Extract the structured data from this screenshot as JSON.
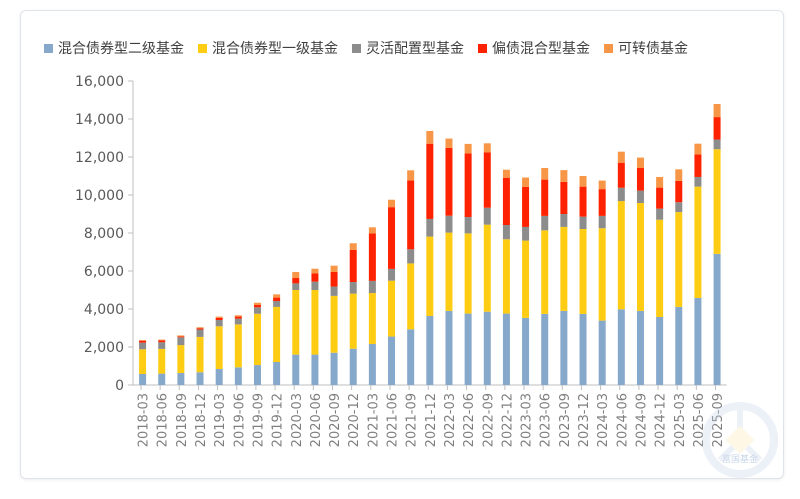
{
  "chart_data": {
    "type": "bar",
    "stacked": true,
    "title": "",
    "xlabel": "",
    "ylabel": "",
    "ylim": [
      0,
      16000
    ],
    "yticks": [
      "0",
      "2,000",
      "4,000",
      "6,000",
      "8,000",
      "10,000",
      "12,000",
      "14,000",
      "16,000"
    ],
    "grid": false,
    "legend_position": "top",
    "categories": [
      "2018-03",
      "2018-06",
      "2018-09",
      "2018-12",
      "2019-03",
      "2019-06",
      "2019-09",
      "2019-12",
      "2020-03",
      "2020-06",
      "2020-09",
      "2020-12",
      "2021-03",
      "2021-06",
      "2021-09",
      "2021-12",
      "2022-03",
      "2022-06",
      "2022-09",
      "2022-12",
      "2023-03",
      "2023-06",
      "2023-09",
      "2023-12",
      "2024-03",
      "2024-06",
      "2024-09",
      "2024-12",
      "2025-03",
      "2025-06",
      "2025-09"
    ],
    "series": [
      {
        "name": "混合债券型二级基金",
        "color": "#86a8cb",
        "values": [
          580,
          600,
          630,
          670,
          840,
          930,
          1050,
          1210,
          1600,
          1600,
          1700,
          1910,
          2160,
          2550,
          2930,
          3630,
          3900,
          3760,
          3860,
          3760,
          3530,
          3740,
          3900,
          3740,
          3390,
          3980,
          3900,
          3580,
          4110,
          4580,
          6900
        ]
      },
      {
        "name": "混合债券型一级基金",
        "color": "#ffcc14",
        "values": [
          1300,
          1300,
          1470,
          1860,
          2250,
          2260,
          2700,
          2900,
          3400,
          3400,
          2990,
          2900,
          2680,
          2940,
          3470,
          4180,
          4120,
          4220,
          4580,
          3910,
          4070,
          4400,
          4420,
          4470,
          4860,
          5700,
          5680,
          5120,
          4990,
          5860,
          5510
        ]
      },
      {
        "name": "灵活配置型基金",
        "color": "#8c8c8c",
        "values": [
          350,
          350,
          410,
          390,
          330,
          300,
          340,
          310,
          350,
          440,
          490,
          610,
          640,
          620,
          740,
          930,
          890,
          860,
          890,
          750,
          720,
          760,
          680,
          650,
          650,
          700,
          650,
          580,
          520,
          510,
          510
        ]
      },
      {
        "name": "偏债混合型基金",
        "color": "#ff2200",
        "values": [
          100,
          100,
          50,
          70,
          110,
          110,
          120,
          180,
          280,
          430,
          770,
          1690,
          2500,
          3250,
          3630,
          3960,
          3570,
          3350,
          2920,
          2490,
          2110,
          1910,
          1690,
          1580,
          1410,
          1320,
          1190,
          1110,
          1120,
          1190,
          1180
        ]
      },
      {
        "name": "可转债基金",
        "color": "#f79646",
        "values": [
          40,
          40,
          50,
          50,
          70,
          70,
          120,
          170,
          320,
          250,
          330,
          350,
          320,
          390,
          530,
          670,
          490,
          500,
          470,
          420,
          490,
          610,
          620,
          560,
          450,
          580,
          550,
          560,
          610,
          560,
          690
        ]
      }
    ]
  },
  "watermark": "富国基金"
}
